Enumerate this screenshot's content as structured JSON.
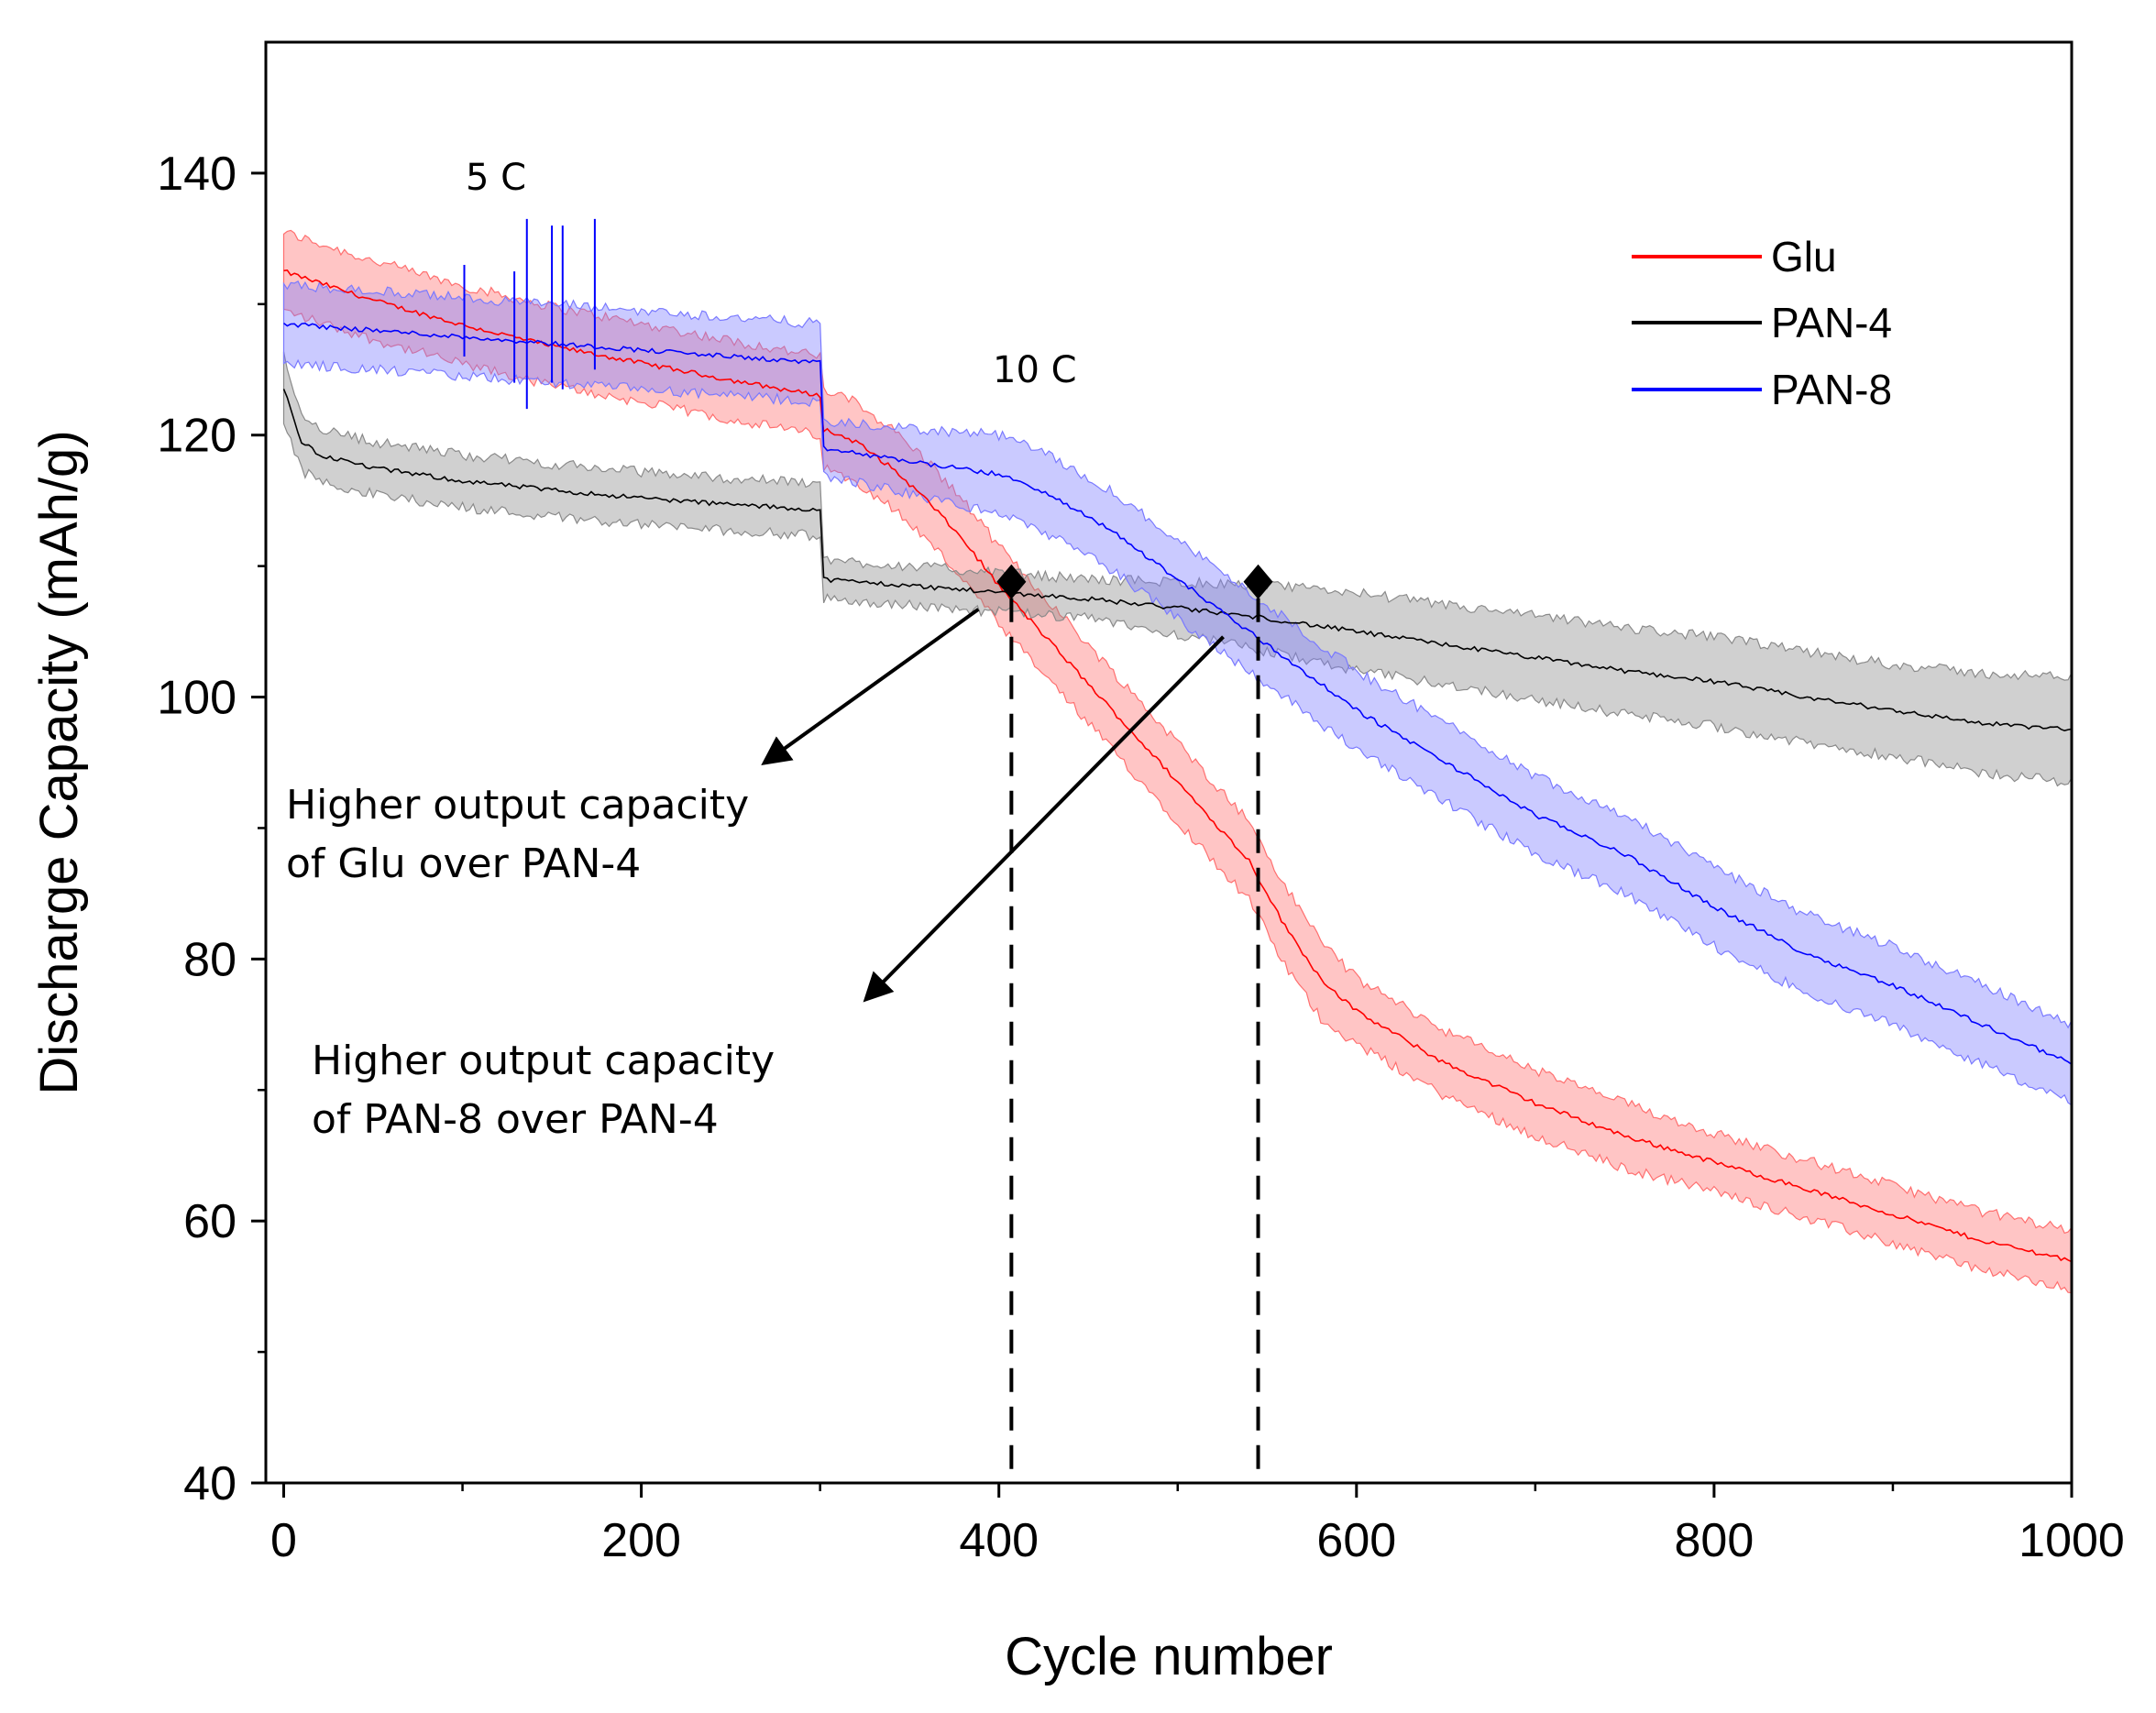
{
  "chart_data": {
    "type": "line",
    "title": "",
    "xlabel": "Cycle number",
    "ylabel": "Discharge Capacity (mAh/g)",
    "xlim": [
      -10,
      1000
    ],
    "ylim": [
      40,
      150
    ],
    "x_ticks": [
      0,
      200,
      400,
      600,
      800,
      1000
    ],
    "y_ticks": [
      40,
      60,
      80,
      100,
      120,
      140
    ],
    "x_tick_labels": [
      "0",
      "200",
      "400",
      "600",
      "800",
      "1000"
    ],
    "y_tick_labels": [
      "40",
      "60",
      "80",
      "100",
      "120",
      "140"
    ],
    "grid": false,
    "legend_position": "top-right",
    "series": [
      {
        "name": "Glu",
        "color": "#ff0000",
        "band_color": "#ff6f6f",
        "x": [
          0,
          50,
          100,
          150,
          200,
          250,
          300,
          301,
          320,
          340,
          360,
          380,
          400,
          420,
          440,
          460,
          480,
          500,
          520,
          540,
          560,
          580,
          600,
          650,
          700,
          750,
          800,
          850,
          900,
          950,
          1000
        ],
        "y": [
          132.5,
          130.3,
          128.4,
          126.8,
          125.5,
          124.2,
          123.0,
          120.5,
          119.5,
          117.5,
          115.0,
          112.0,
          108.5,
          105.5,
          102.5,
          99.5,
          96.5,
          93.5,
          90.5,
          87.5,
          82.5,
          78.5,
          76.0,
          72.0,
          69.0,
          66.5,
          64.5,
          62.5,
          60.5,
          58.5,
          57.0
        ],
        "band": [
          3.0,
          3.0,
          3.0,
          3.0,
          3.0,
          3.0,
          3.0,
          3.0,
          3.0,
          3.0,
          3.0,
          3.0,
          3.0,
          3.0,
          3.0,
          3.0,
          3.0,
          3.0,
          3.0,
          3.0,
          3.0,
          3.0,
          2.5,
          2.5,
          2.5,
          2.5,
          2.2,
          2.2,
          2.2,
          2.2,
          2.3
        ]
      },
      {
        "name": "PAN-4",
        "color": "#000000",
        "band_color": "#8a8a8a",
        "x": [
          0,
          10,
          20,
          50,
          100,
          150,
          200,
          250,
          300,
          301,
          350,
          400,
          450,
          500,
          550,
          600,
          650,
          700,
          750,
          800,
          850,
          900,
          950,
          1000
        ],
        "y": [
          123.5,
          119.5,
          118.5,
          117.5,
          116.5,
          115.8,
          115.2,
          114.7,
          114.3,
          109.0,
          108.5,
          108.0,
          107.5,
          106.8,
          106.0,
          105.0,
          104.0,
          103.0,
          102.0,
          101.2,
          100.0,
          99.0,
          98.0,
          97.5
        ],
        "band": [
          2.5,
          2.2,
          2.0,
          2.0,
          2.0,
          2.0,
          2.0,
          2.0,
          2.0,
          1.5,
          1.5,
          1.5,
          1.5,
          2.0,
          2.5,
          3.0,
          3.0,
          3.2,
          3.3,
          3.4,
          3.5,
          3.5,
          3.8,
          4.0
        ]
      },
      {
        "name": "PAN-8",
        "color": "#0000ff",
        "band_color": "#7a7aff",
        "x": [
          0,
          50,
          100,
          150,
          200,
          250,
          300,
          301,
          350,
          400,
          420,
          440,
          460,
          480,
          500,
          520,
          540,
          560,
          580,
          600,
          650,
          700,
          750,
          800,
          850,
          900,
          950,
          1000
        ],
        "y": [
          128.5,
          128.0,
          127.5,
          127.0,
          126.5,
          126.0,
          125.5,
          119.0,
          118.0,
          117.0,
          116.0,
          114.5,
          113.0,
          111.0,
          109.0,
          107.0,
          105.0,
          103.0,
          101.0,
          99.0,
          95.0,
          91.0,
          88.0,
          84.0,
          80.5,
          78.0,
          75.0,
          72.0
        ],
        "band": [
          3.0,
          3.0,
          3.0,
          3.0,
          3.0,
          3.0,
          3.0,
          2.0,
          2.5,
          3.0,
          3.0,
          3.0,
          3.0,
          3.0,
          3.0,
          3.0,
          3.0,
          3.0,
          3.0,
          3.0,
          3.0,
          3.0,
          3.0,
          3.0,
          3.0,
          3.0,
          3.0,
          3.0
        ]
      }
    ],
    "spikes": {
      "series": "PAN-8",
      "x": [
        101,
        129,
        136,
        150,
        156,
        174
      ],
      "y_max": [
        133.0,
        132.5,
        136.5,
        136.0,
        136.0,
        136.5
      ],
      "y_min": [
        126.0,
        124.0,
        122.0,
        124.0,
        123.5,
        125.0
      ]
    },
    "annotations": {
      "rate_5c": "5 C",
      "rate_10c": "10 C",
      "crossover_glu": {
        "x": 407,
        "y": 108.8
      },
      "crossover_pan8": {
        "x": 545,
        "y": 108.8
      },
      "label_glu_line1": "Higher output capacity",
      "label_glu_line2": "of Glu over PAN-4",
      "label_pan8_line1": "Higher output capacity",
      "label_pan8_line2": "of PAN-8 over PAN-4"
    }
  }
}
